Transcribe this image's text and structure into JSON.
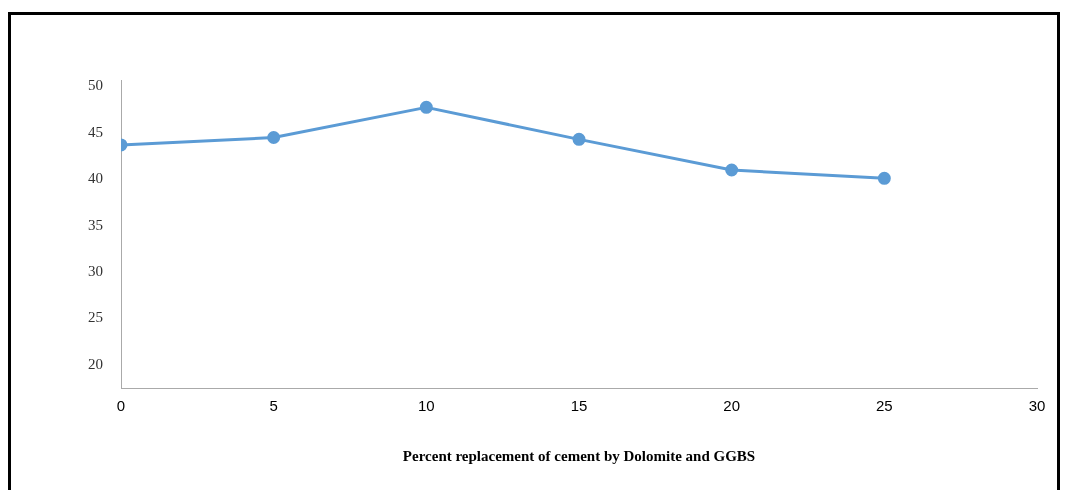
{
  "chart_data": {
    "type": "line",
    "xlabel": "Percent replacement of cement by Dolomite and GGBS",
    "x": [
      0,
      5,
      10,
      15,
      20,
      25
    ],
    "series": [
      {
        "color": "#5b9bd5",
        "values": [
          43.7,
          44.5,
          47.75,
          44.3,
          41.0,
          40.1
        ]
      }
    ],
    "xlim": [
      0,
      30
    ],
    "xticks": [
      0,
      5,
      10,
      15,
      20,
      25,
      30
    ],
    "ylim": [
      17.5,
      50.7
    ],
    "yticks": [
      20,
      25,
      30,
      35,
      40,
      45,
      50
    ],
    "grid": false,
    "legend": false,
    "marker": "circle",
    "line_style": "solid"
  }
}
